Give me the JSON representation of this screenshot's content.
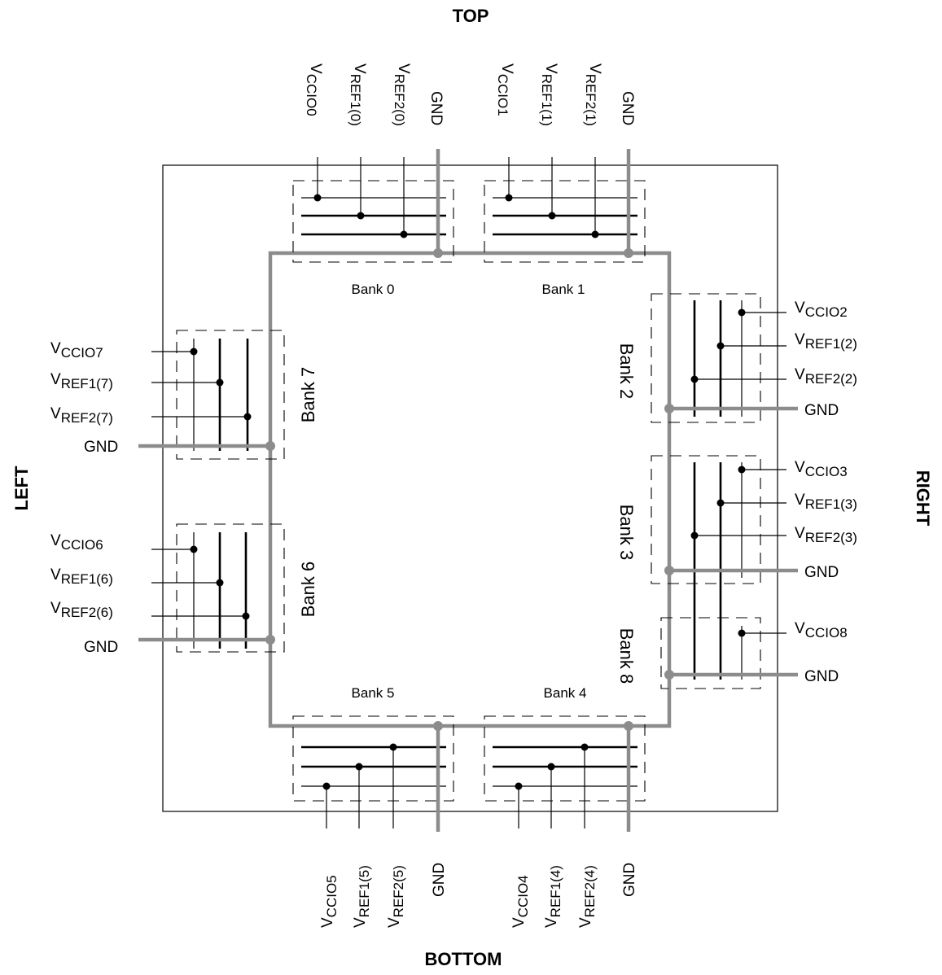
{
  "sides": {
    "top": "TOP",
    "bottom": "BOTTOM",
    "left": "LEFT",
    "right": "RIGHT"
  },
  "banks": {
    "b0": "Bank 0",
    "b1": "Bank 1",
    "b2": "Bank 2",
    "b3": "Bank 3",
    "b4": "Bank 4",
    "b5": "Bank 5",
    "b6": "Bank 6",
    "b7": "Bank 7",
    "b8": "Bank 8"
  },
  "gnd": "GND",
  "v": "V",
  "subs": {
    "vccio0": "CCIO0",
    "vref1_0": "REF1(0)",
    "vref2_0": "REF2(0)",
    "vccio1": "CCIO1",
    "vref1_1": "REF1(1)",
    "vref2_1": "REF2(1)",
    "vccio2": "CCIO2",
    "vref1_2": "REF1(2)",
    "vref2_2": "REF2(2)",
    "vccio3": "CCIO3",
    "vref1_3": "REF1(3)",
    "vref2_3": "REF2(3)",
    "vccio4": "CCIO4",
    "vref1_4": "REF1(4)",
    "vref2_4": "REF2(4)",
    "vccio5": "CCIO5",
    "vref1_5": "REF1(5)",
    "vref2_5": "REF2(5)",
    "vccio6": "CCIO6",
    "vref1_6": "REF1(6)",
    "vref2_6": "REF2(6)",
    "vccio7": "CCIO7",
    "vref1_7": "REF1(7)",
    "vref2_7": "REF2(7)",
    "vccio8": "CCIO8"
  }
}
